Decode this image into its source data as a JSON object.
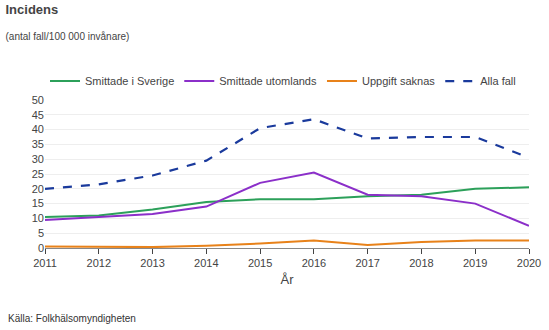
{
  "chart_data": {
    "type": "line",
    "title": "Incidens",
    "subtitle": "(antal fall/100 000 invånare)",
    "xlabel": "År",
    "annotations": [
      "Källa: Folkhälsomyndigheten"
    ],
    "x": [
      2011,
      2012,
      2013,
      2014,
      2015,
      2016,
      2017,
      2018,
      2019,
      2020
    ],
    "series": [
      {
        "name": "Smittade i Sverige",
        "color": "#2ca05a",
        "line_style": "solid",
        "values": [
          10.5,
          11.0,
          13.0,
          15.5,
          16.5,
          16.5,
          17.5,
          18.0,
          20.0,
          20.5
        ]
      },
      {
        "name": "Smittade utomlands",
        "color": "#8b2fc9",
        "line_style": "solid",
        "values": [
          9.5,
          10.5,
          11.5,
          14.0,
          22.0,
          25.5,
          18.0,
          17.5,
          15.0,
          7.5
        ]
      },
      {
        "name": "Uppgift saknas",
        "color": "#e8821a",
        "line_style": "solid",
        "values": [
          0.5,
          0.3,
          0.3,
          0.8,
          1.5,
          2.5,
          1.0,
          2.0,
          2.5,
          2.5
        ]
      },
      {
        "name": "Alla fall",
        "color": "#1a3a9c",
        "line_style": "dashed",
        "values": [
          20.0,
          21.5,
          24.5,
          29.5,
          40.5,
          43.5,
          37.0,
          37.5,
          37.5,
          30.5
        ]
      }
    ],
    "xlim": [
      2011,
      2020
    ],
    "xticks": [
      2011,
      2012,
      2013,
      2014,
      2015,
      2016,
      2017,
      2018,
      2019,
      2020
    ],
    "ylim": [
      0,
      50
    ],
    "yticks": [
      0,
      5,
      10,
      15,
      20,
      25,
      30,
      35,
      40,
      45,
      50
    ],
    "grid": "y",
    "legend": "top"
  }
}
